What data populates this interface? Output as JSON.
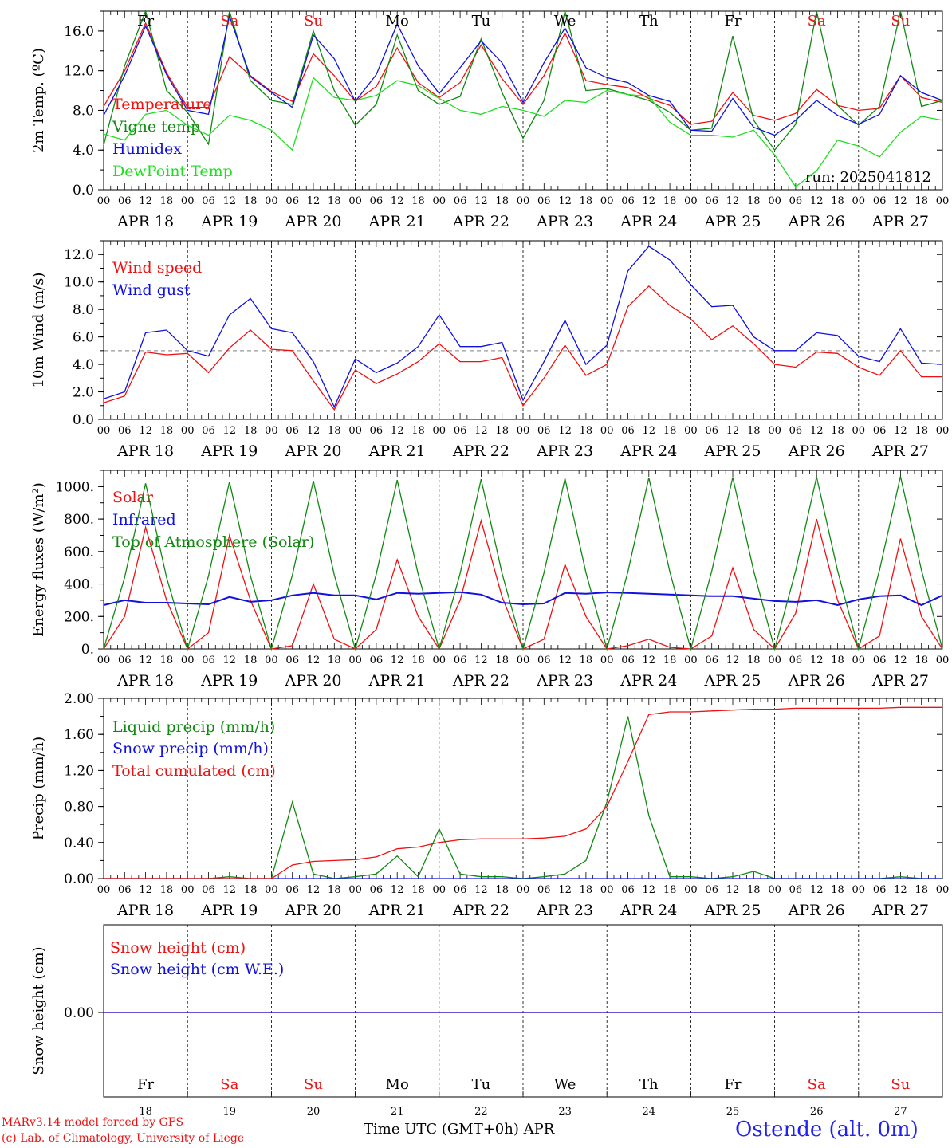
{
  "footer": {
    "credit_line1": "MARv3.14 model forced by GFS",
    "credit_line2": "(c) Lab. of Climatology, University of Liege",
    "x_title": "Time UTC (GMT+0h) APR",
    "station": "Ostende (alt. 0m)"
  },
  "colors": {
    "red": "#ee1111",
    "green": "#118811",
    "blue": "#1111dd",
    "lightgreen": "#22dd22",
    "dashed": "#999999"
  },
  "chart_data": [
    {
      "type": "line",
      "panel": "temperature",
      "ylabel": "2m Temp. (ºC)",
      "ylim": [
        0,
        18
      ],
      "yticks": [
        "0.0",
        "4.0",
        "8.0",
        "12.0",
        "16.0"
      ],
      "day_names": [
        "Fr",
        "Sa",
        "Su",
        "Mo",
        "Tu",
        "We",
        "Th",
        "Fr",
        "Sa",
        "Su"
      ],
      "annotation": "run: 2025041812",
      "x_hours": [
        0,
        6,
        12,
        18,
        24,
        30,
        36,
        42,
        48,
        54,
        60,
        66,
        72,
        78,
        84,
        90,
        96,
        102,
        108,
        114,
        120,
        126,
        132,
        138,
        144,
        150,
        156,
        162,
        168,
        174,
        180,
        186,
        192,
        198,
        204,
        210,
        216,
        222,
        228,
        234,
        240
      ],
      "series": [
        {
          "name": "Temperature",
          "color": "red",
          "values": [
            8.4,
            12.0,
            16.8,
            11.8,
            8.3,
            8.3,
            13.4,
            11.5,
            9.9,
            8.9,
            13.7,
            11.5,
            8.9,
            10.4,
            14.3,
            10.8,
            9.3,
            10.8,
            14.6,
            11.2,
            8.6,
            11.5,
            15.8,
            11.0,
            10.6,
            10.3,
            9.2,
            8.5,
            6.6,
            6.9,
            9.8,
            7.5,
            7.0,
            7.7,
            10.1,
            8.5,
            8.0,
            8.2,
            11.5,
            9.3,
            8.8
          ]
        },
        {
          "name": "Vigne temp",
          "color": "green",
          "values": [
            4.5,
            12.5,
            20.0,
            10.0,
            7.8,
            4.6,
            20.0,
            11.0,
            9.0,
            8.6,
            16.0,
            10.0,
            6.5,
            8.6,
            15.6,
            10.0,
            8.6,
            9.4,
            15.2,
            9.8,
            5.2,
            9.0,
            20.0,
            10.0,
            10.2,
            9.6,
            9.0,
            7.8,
            6.0,
            6.2,
            15.5,
            7.0,
            4.0,
            6.6,
            20.0,
            8.5,
            6.5,
            8.4,
            20.0,
            8.4,
            9.0
          ]
        },
        {
          "name": "Humidex",
          "color": "blue",
          "values": [
            7.5,
            11.5,
            16.5,
            11.6,
            8.0,
            7.6,
            17.5,
            11.4,
            9.8,
            8.3,
            15.6,
            13.2,
            8.9,
            11.6,
            16.7,
            12.5,
            9.7,
            12.3,
            15.0,
            12.8,
            8.8,
            12.8,
            16.3,
            12.3,
            11.3,
            10.8,
            9.5,
            8.9,
            6.0,
            5.9,
            9.2,
            6.3,
            5.5,
            7.0,
            9.0,
            7.5,
            6.6,
            7.6,
            11.5,
            9.8,
            9.0
          ]
        },
        {
          "name": "DewPoint Temp",
          "color": "lightgreen",
          "values": [
            5.6,
            5.0,
            7.6,
            8.0,
            6.5,
            5.5,
            7.5,
            7.0,
            6.0,
            4.0,
            11.3,
            9.3,
            9.0,
            9.5,
            11.0,
            10.5,
            9.2,
            8.0,
            7.6,
            8.4,
            8.0,
            7.4,
            9.0,
            8.8,
            10.0,
            9.6,
            9.4,
            6.8,
            5.5,
            5.5,
            5.3,
            6.0,
            3.5,
            0.3,
            1.9,
            5.0,
            4.4,
            3.3,
            5.8,
            7.4,
            7.0
          ]
        }
      ]
    },
    {
      "type": "line",
      "panel": "wind",
      "ylabel": "10m Wind (m/s)",
      "ylim": [
        0,
        13
      ],
      "yticks": [
        "0.0",
        "2.0",
        "4.0",
        "6.0",
        "8.0",
        "10.0",
        "12.0"
      ],
      "reference_line": 5.0,
      "x_hours": [
        0,
        6,
        12,
        18,
        24,
        30,
        36,
        42,
        48,
        54,
        60,
        66,
        72,
        78,
        84,
        90,
        96,
        102,
        108,
        114,
        120,
        126,
        132,
        138,
        144,
        150,
        156,
        162,
        168,
        174,
        180,
        186,
        192,
        198,
        204,
        210,
        216,
        222,
        228,
        234,
        240
      ],
      "series": [
        {
          "name": "Wind speed",
          "color": "red",
          "values": [
            1.2,
            1.7,
            4.9,
            4.7,
            4.8,
            3.4,
            5.2,
            6.5,
            5.1,
            5.0,
            2.8,
            0.7,
            3.6,
            2.6,
            3.3,
            4.2,
            5.5,
            4.2,
            4.2,
            4.5,
            1.0,
            3.0,
            5.4,
            3.2,
            4.0,
            8.2,
            9.7,
            8.3,
            7.3,
            5.8,
            6.8,
            5.5,
            4.0,
            3.8,
            4.9,
            4.8,
            3.8,
            3.2,
            5.0,
            3.1,
            3.1
          ]
        },
        {
          "name": "Wind gust",
          "color": "blue",
          "values": [
            1.5,
            2.0,
            6.3,
            6.5,
            5.0,
            4.6,
            7.6,
            8.8,
            6.6,
            6.3,
            4.2,
            0.9,
            4.4,
            3.4,
            4.1,
            5.3,
            7.6,
            5.3,
            5.3,
            5.6,
            1.4,
            4.2,
            7.2,
            4.0,
            5.4,
            10.8,
            12.6,
            11.6,
            9.8,
            8.2,
            8.3,
            6.0,
            5.0,
            5.0,
            6.3,
            6.1,
            4.6,
            4.2,
            6.6,
            4.1,
            4.0
          ]
        }
      ]
    },
    {
      "type": "line",
      "panel": "energy",
      "ylabel": "Energy fluxes (W/m²)",
      "ylim": [
        0,
        1100
      ],
      "yticks": [
        "0.",
        "200.",
        "400.",
        "600.",
        "800.",
        "1000."
      ],
      "x_hours": [
        0,
        6,
        12,
        18,
        24,
        30,
        36,
        42,
        48,
        54,
        60,
        66,
        72,
        78,
        84,
        90,
        96,
        102,
        108,
        114,
        120,
        126,
        132,
        138,
        144,
        150,
        156,
        162,
        168,
        174,
        180,
        186,
        192,
        198,
        204,
        210,
        216,
        222,
        228,
        234,
        240
      ],
      "series": [
        {
          "name": "Solar",
          "color": "red",
          "values": [
            0,
            200,
            750,
            300,
            0,
            100,
            700,
            300,
            0,
            20,
            400,
            60,
            0,
            120,
            550,
            200,
            0,
            300,
            790,
            320,
            0,
            60,
            520,
            200,
            0,
            20,
            60,
            10,
            0,
            80,
            500,
            120,
            0,
            220,
            800,
            300,
            0,
            80,
            680,
            200,
            0
          ]
        },
        {
          "name": "Infrared",
          "color": "blue",
          "values": [
            270,
            300,
            285,
            285,
            280,
            275,
            320,
            290,
            300,
            330,
            345,
            330,
            330,
            305,
            345,
            340,
            345,
            350,
            335,
            285,
            275,
            280,
            345,
            340,
            348,
            345,
            340,
            335,
            330,
            325,
            325,
            310,
            295,
            290,
            300,
            270,
            305,
            325,
            330,
            270,
            330
          ]
        },
        {
          "name": "Top of Atmosphere (Solar)",
          "color": "green",
          "values": [
            0,
            440,
            1020,
            440,
            0,
            450,
            1030,
            450,
            0,
            455,
            1035,
            455,
            0,
            460,
            1040,
            460,
            0,
            465,
            1045,
            465,
            0,
            470,
            1050,
            470,
            0,
            475,
            1055,
            475,
            0,
            480,
            1058,
            480,
            0,
            482,
            1060,
            482,
            0,
            485,
            1063,
            485,
            0
          ]
        }
      ]
    },
    {
      "type": "line",
      "panel": "precip",
      "ylabel": "Precip (mm/h)",
      "ylim": [
        0,
        2.0
      ],
      "yticks": [
        "0.00",
        "0.40",
        "0.80",
        "1.20",
        "1.60",
        "2.00"
      ],
      "x_hours": [
        0,
        6,
        12,
        18,
        24,
        30,
        36,
        42,
        48,
        54,
        60,
        66,
        72,
        78,
        84,
        90,
        96,
        102,
        108,
        114,
        120,
        126,
        132,
        138,
        144,
        150,
        156,
        162,
        168,
        174,
        180,
        186,
        192,
        198,
        204,
        210,
        216,
        222,
        228,
        234,
        240
      ],
      "series": [
        {
          "name": "Liquid precip (mm/h)",
          "color": "green",
          "values": [
            0,
            0,
            0,
            0,
            0,
            0,
            0.02,
            0,
            0,
            0.85,
            0.05,
            0,
            0.02,
            0.05,
            0.25,
            0.02,
            0.55,
            0.05,
            0.02,
            0.02,
            0,
            0.02,
            0.05,
            0.2,
            0.85,
            1.8,
            0.7,
            0.02,
            0.02,
            0,
            0.02,
            0.08,
            0,
            0,
            0,
            0,
            0,
            0,
            0.02,
            0,
            0
          ]
        },
        {
          "name": "Snow precip (mm/h)",
          "color": "blue",
          "values": [
            0,
            0,
            0,
            0,
            0,
            0,
            0,
            0,
            0,
            0,
            0,
            0,
            0,
            0,
            0,
            0,
            0,
            0,
            0,
            0,
            0,
            0,
            0,
            0,
            0,
            0,
            0,
            0,
            0,
            0,
            0,
            0,
            0,
            0,
            0,
            0,
            0,
            0,
            0,
            0,
            0
          ]
        },
        {
          "name": "Total cumulated (cm)",
          "color": "red",
          "values": [
            0,
            0,
            0,
            0,
            0,
            0,
            0,
            0,
            0,
            0.15,
            0.19,
            0.2,
            0.21,
            0.24,
            0.33,
            0.35,
            0.4,
            0.43,
            0.44,
            0.44,
            0.44,
            0.45,
            0.47,
            0.55,
            0.8,
            1.3,
            1.82,
            1.85,
            1.85,
            1.86,
            1.87,
            1.88,
            1.88,
            1.89,
            1.89,
            1.89,
            1.89,
            1.89,
            1.9,
            1.9,
            1.9
          ]
        }
      ]
    },
    {
      "type": "line",
      "panel": "snow",
      "ylabel": "Snow height (cm)",
      "yticks": [
        "0.00"
      ],
      "day_numbers": [
        "18",
        "19",
        "20",
        "21",
        "22",
        "23",
        "24",
        "25",
        "26",
        "27"
      ],
      "x_hours": [
        0,
        240
      ],
      "series": [
        {
          "name": "Snow height (cm)",
          "color": "red",
          "values": [
            0,
            0
          ]
        },
        {
          "name": "Snow height (cm W.E.)",
          "color": "blue",
          "values": [
            0,
            0
          ]
        }
      ]
    }
  ],
  "x_axis": {
    "hour_labels": [
      "00",
      "06",
      "12",
      "18"
    ],
    "date_labels": [
      "APR 18",
      "APR 19",
      "APR 20",
      "APR 21",
      "APR 22",
      "APR 23",
      "APR 24",
      "APR 25",
      "APR 26",
      "APR 27"
    ],
    "weekend_day_indices": [
      1,
      2,
      8,
      9
    ]
  }
}
